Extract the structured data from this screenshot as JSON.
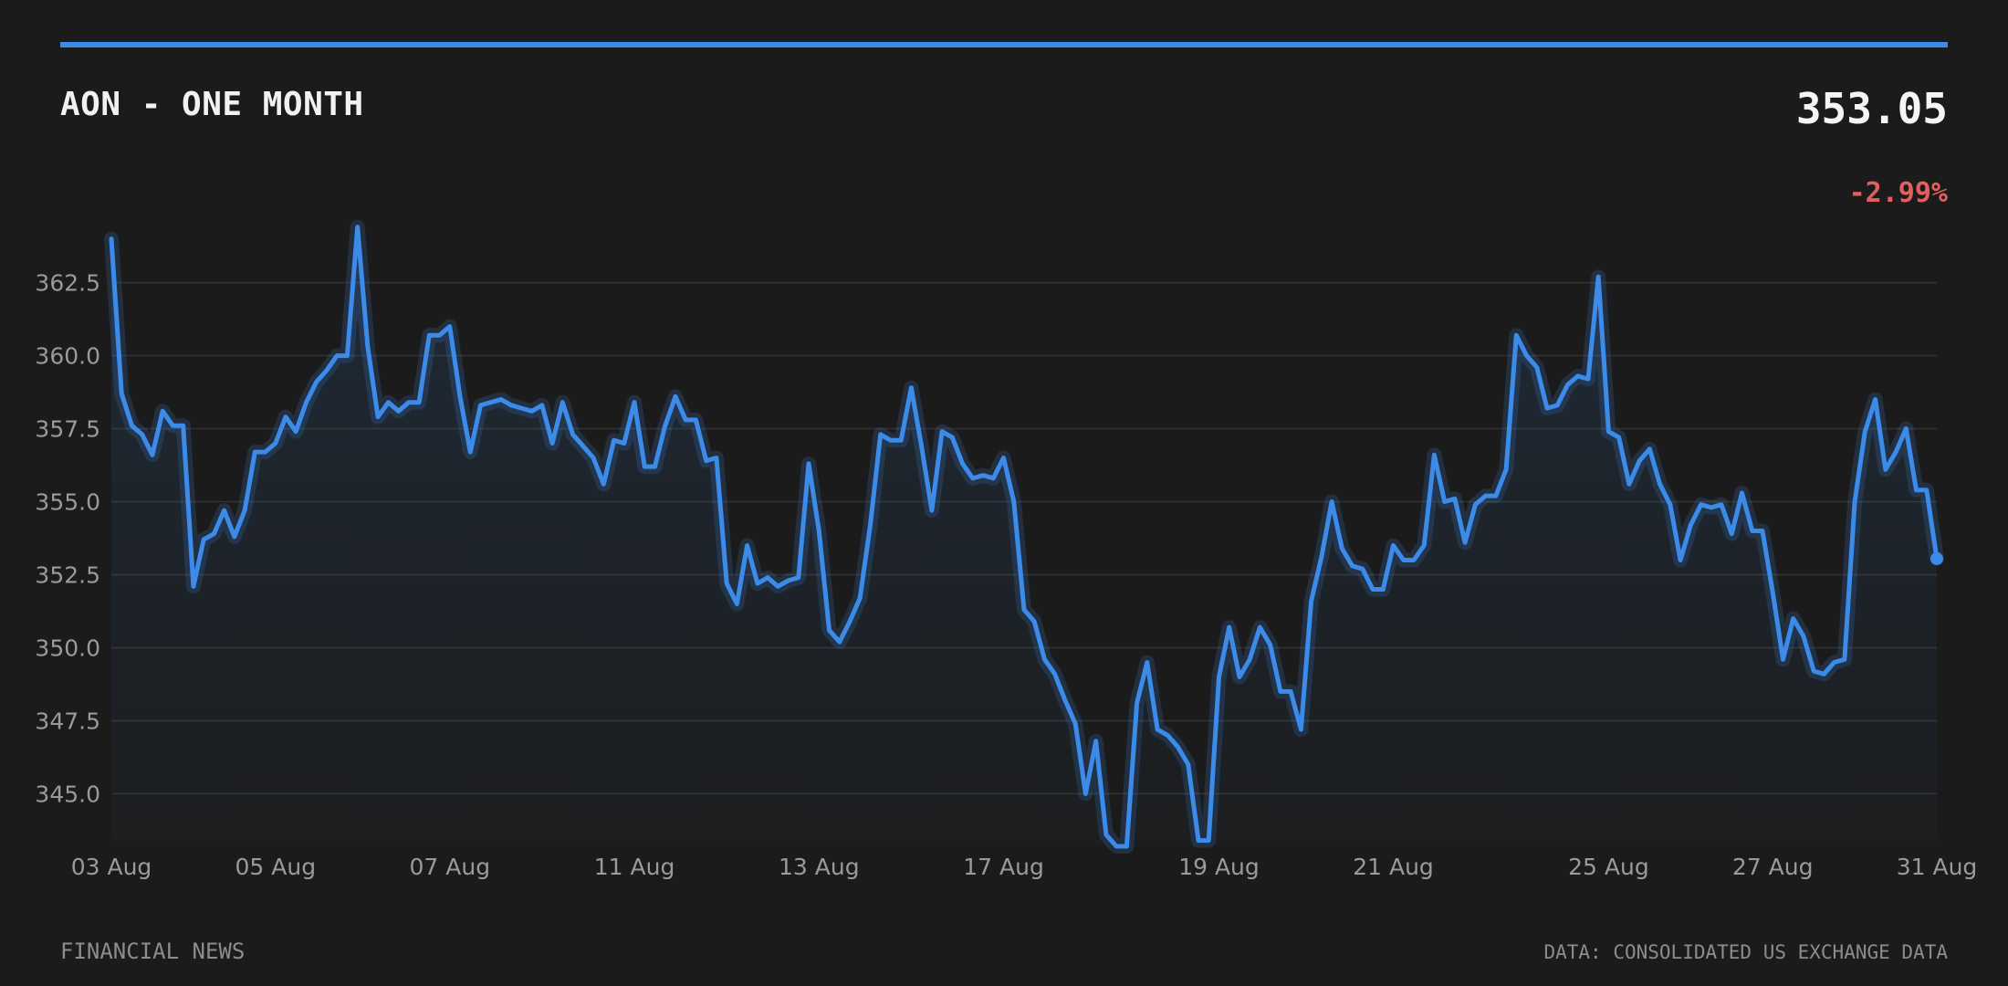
{
  "header": {
    "title": "AON - ONE MONTH",
    "price": "353.05",
    "change": "-2.99%"
  },
  "footer": {
    "left": "FINANCIAL NEWS",
    "right": "DATA: CONSOLIDATED US EXCHANGE DATA"
  },
  "colors": {
    "accent": "#3d8be8",
    "negative": "#e0605d",
    "background": "#1b1b1b",
    "grid": "#333333"
  },
  "chart_data": {
    "type": "line",
    "title": "AON - ONE MONTH",
    "xlabel": "",
    "ylabel": "",
    "ylim": [
      343.2,
      365.3
    ],
    "y_ticks": [
      345.0,
      347.5,
      350.0,
      352.5,
      355.0,
      357.5,
      360.0,
      362.5
    ],
    "y_tick_labels": [
      "345.0",
      "347.5",
      "350.0",
      "352.5",
      "355.0",
      "357.5",
      "360.0",
      "362.5"
    ],
    "x_tick_labels": [
      "03 Aug",
      "05 Aug",
      "07 Aug",
      "11 Aug",
      "13 Aug",
      "17 Aug",
      "19 Aug",
      "21 Aug",
      "25 Aug",
      "27 Aug",
      "31 Aug"
    ],
    "x_tick_index": [
      0,
      16,
      33,
      51,
      69,
      87,
      108,
      125,
      146,
      162,
      178
    ],
    "grid": true,
    "legend": "none",
    "series": [
      {
        "values": [
          364.0,
          358.7,
          357.6,
          357.3,
          356.6,
          358.1,
          357.6,
          357.6,
          352.1,
          353.7,
          353.9,
          354.7,
          353.8,
          354.7,
          356.7,
          356.7,
          357.0,
          357.9,
          357.4,
          358.4,
          359.1,
          359.5,
          360.0,
          360.0,
          364.4,
          360.3,
          357.9,
          358.4,
          358.1,
          358.4,
          358.4,
          360.7,
          360.7,
          361.0,
          358.6,
          356.7,
          358.3,
          358.4,
          358.5,
          358.3,
          358.2,
          358.1,
          358.3,
          357.0,
          358.4,
          357.3,
          356.9,
          356.5,
          355.6,
          357.1,
          357.0,
          358.4,
          356.2,
          356.2,
          357.6,
          358.6,
          357.8,
          357.8,
          356.4,
          356.5,
          352.2,
          351.5,
          353.5,
          352.2,
          352.4,
          352.1,
          352.3,
          352.4,
          356.3,
          354.0,
          350.6,
          350.2,
          350.9,
          351.7,
          354.2,
          357.3,
          357.1,
          357.1,
          358.9,
          356.9,
          354.7,
          357.4,
          357.2,
          356.3,
          355.8,
          355.9,
          355.8,
          356.5,
          355.0,
          351.3,
          350.9,
          349.6,
          349.1,
          348.2,
          347.4,
          345.0,
          346.8,
          343.6,
          343.2,
          343.2,
          348.1,
          349.5,
          347.2,
          347.0,
          346.6,
          346.0,
          343.4,
          343.4,
          349.0,
          350.7,
          349.0,
          349.6,
          350.7,
          350.1,
          348.5,
          348.5,
          347.2,
          351.6,
          353.1,
          355.0,
          353.4,
          352.8,
          352.7,
          352.0,
          352.0,
          353.5,
          353.0,
          353.0,
          353.5,
          356.6,
          355.0,
          355.1,
          353.6,
          354.9,
          355.2,
          355.2,
          356.1,
          360.7,
          360.0,
          359.6,
          358.2,
          358.3,
          359.0,
          359.3,
          359.2,
          362.7,
          357.4,
          357.2,
          355.6,
          356.4,
          356.8,
          355.6,
          354.9,
          353.0,
          354.2,
          354.9,
          354.8,
          354.9,
          353.9,
          355.3,
          354.0,
          354.0,
          351.9,
          349.6,
          351.0,
          350.4,
          349.2,
          349.1,
          349.5,
          349.6,
          355.0,
          357.4,
          358.5,
          356.1,
          356.7,
          357.5,
          355.4,
          355.4,
          353.05
        ]
      }
    ]
  }
}
